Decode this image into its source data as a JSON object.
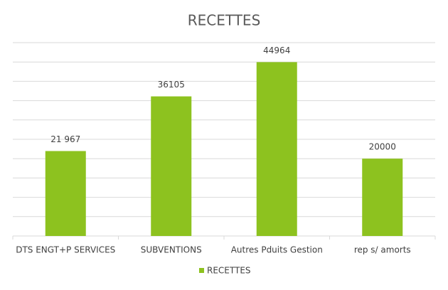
{
  "chart_data": {
    "type": "bar",
    "title": "RECETTES",
    "categories": [
      "DTS ENGT+P SERVICES",
      "SUBVENTIONS",
      "Autres Pduits Gestion",
      "rep s/ amorts"
    ],
    "series": [
      {
        "name": "RECETTES",
        "color": "#8dc21f",
        "values": [
          21967,
          36105,
          44964,
          20000
        ],
        "value_labels": [
          "21 967",
          "36105",
          "44964",
          "20000"
        ]
      }
    ],
    "ylim": [
      0,
      50000
    ],
    "yticks": [
      0,
      5000,
      10000,
      15000,
      20000,
      25000,
      30000,
      35000,
      40000,
      45000,
      50000
    ],
    "grid": true,
    "legend": "bottom"
  }
}
